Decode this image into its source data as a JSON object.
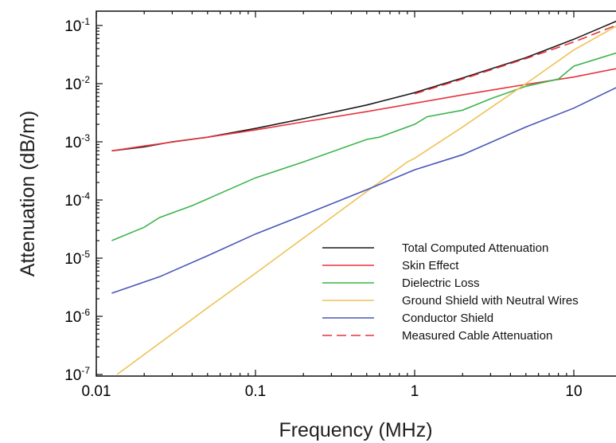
{
  "chart_data": {
    "type": "line",
    "xlabel": "Frequency (MHz)",
    "ylabel": "Attenuation (dB/m)",
    "x_scale": "log",
    "y_scale": "log",
    "xlim": [
      0.01,
      20
    ],
    "ylim": [
      1e-07,
      0.15
    ],
    "x_ticks": [
      {
        "value": 0.01,
        "label": "0.01"
      },
      {
        "value": 0.1,
        "label": "0.1"
      },
      {
        "value": 1,
        "label": "1"
      },
      {
        "value": 10,
        "label": "10"
      }
    ],
    "y_ticks": [
      {
        "value": 0.1,
        "base": "10",
        "exp": "-1"
      },
      {
        "value": 0.01,
        "base": "10",
        "exp": "-2"
      },
      {
        "value": 0.001,
        "base": "10",
        "exp": "-3"
      },
      {
        "value": 0.0001,
        "base": "10",
        "exp": "-4"
      },
      {
        "value": 1e-05,
        "base": "10",
        "exp": "-5"
      },
      {
        "value": 1e-06,
        "base": "10",
        "exp": "-6"
      },
      {
        "value": 1e-07,
        "base": "10",
        "exp": "-7"
      }
    ],
    "grid": false,
    "legend_position": "bottom-right",
    "series": [
      {
        "name": "Total Computed Attenuation",
        "color": "#1a1a1a",
        "dash": "solid",
        "x": [
          0.0125,
          0.02,
          0.03,
          0.05,
          0.1,
          0.2,
          0.5,
          1,
          2,
          5,
          10,
          20
        ],
        "y": [
          0.0007,
          0.00082,
          0.001,
          0.0012,
          0.0017,
          0.0025,
          0.0043,
          0.007,
          0.0125,
          0.028,
          0.058,
          0.13
        ]
      },
      {
        "name": "Skin Effect",
        "color": "#e8323c",
        "dash": "solid",
        "x": [
          0.0125,
          0.02,
          0.05,
          0.1,
          0.2,
          0.5,
          1,
          2,
          5,
          10,
          20
        ],
        "y": [
          0.0007,
          0.00085,
          0.0012,
          0.0016,
          0.0022,
          0.0033,
          0.0046,
          0.0064,
          0.0097,
          0.013,
          0.019
        ]
      },
      {
        "name": "Dielectric Loss",
        "color": "#3cb44b",
        "dash": "solid",
        "x": [
          0.0125,
          0.02,
          0.025,
          0.04,
          0.06,
          0.1,
          0.2,
          0.5,
          0.6,
          1,
          1.2,
          2,
          3,
          5,
          8,
          10,
          20
        ],
        "y": [
          2e-05,
          3.4e-05,
          5e-05,
          8e-05,
          0.00013,
          0.00024,
          0.00045,
          0.0011,
          0.0012,
          0.002,
          0.0027,
          0.0035,
          0.0055,
          0.009,
          0.012,
          0.02,
          0.036
        ]
      },
      {
        "name": "Ground Shield with Neutral Wires",
        "color": "#eec255",
        "dash": "solid",
        "x": [
          0.0135,
          0.05,
          0.1,
          0.3,
          0.5,
          0.9,
          1.0,
          2,
          5,
          10,
          20
        ],
        "y": [
          1e-07,
          1.4e-06,
          5.5e-06,
          5e-05,
          0.00014,
          0.00045,
          0.00052,
          0.0018,
          0.01,
          0.038,
          0.11
        ]
      },
      {
        "name": "Conductor Shield",
        "color": "#4a56b8",
        "dash": "solid",
        "x": [
          0.0125,
          0.025,
          0.05,
          0.1,
          0.2,
          0.5,
          1,
          2,
          5,
          10,
          20
        ],
        "y": [
          2.5e-06,
          4.8e-06,
          1.1e-05,
          2.6e-05,
          5.5e-05,
          0.00015,
          0.00033,
          0.0006,
          0.0018,
          0.0038,
          0.0095
        ]
      },
      {
        "name": "Measured Cable Attenuation",
        "color": "#e8323c",
        "dash": "dashed",
        "x": [
          1,
          2,
          5,
          10,
          20
        ],
        "y": [
          0.0067,
          0.012,
          0.027,
          0.052,
          0.11
        ]
      }
    ]
  }
}
